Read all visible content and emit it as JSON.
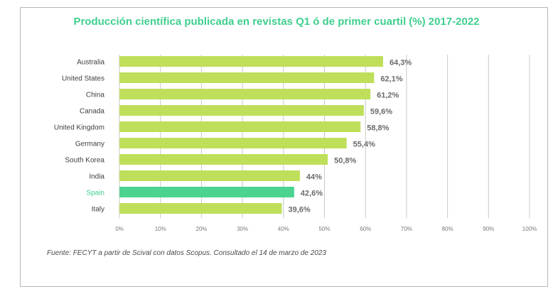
{
  "chart_data": {
    "type": "bar",
    "orientation": "horizontal",
    "title": "Producción científica publicada en revistas Q1 ó de primer cuartil (%) 2017-2022",
    "categories": [
      "Australia",
      "United States",
      "China",
      "Canada",
      "United Kingdom",
      "Germany",
      "South Korea",
      "India",
      "Spain",
      "Italy"
    ],
    "values": [
      64.3,
      62.1,
      61.2,
      59.6,
      58.8,
      55.4,
      50.8,
      44,
      42.6,
      39.6
    ],
    "value_labels": [
      "64,3%",
      "62,1%",
      "61,2%",
      "59,6%",
      "58,8%",
      "55,4%",
      "50,8%",
      "44%",
      "42,6%",
      "39,6%"
    ],
    "highlight_category": "Spain",
    "xlim": [
      0,
      100
    ],
    "xticks": [
      0,
      10,
      20,
      30,
      40,
      50,
      60,
      70,
      80,
      90,
      100
    ],
    "xtick_labels": [
      "0%",
      "10%",
      "20%",
      "30%",
      "40%",
      "50%",
      "60%",
      "70%",
      "80%",
      "90%",
      "100%"
    ],
    "grid": "vertical",
    "colors": {
      "bar": "#bfdf5a",
      "highlight_bar": "#4cd38f",
      "highlight_label": "#3fcf8e",
      "title": "#3fcf8e",
      "value_label": "#6b6b6b",
      "grid": "#c8c8c8"
    }
  },
  "source_note": "Fuente: FECYT a partir de Scival con datos Scopus. Consultado el 14 de marzo de 2023"
}
